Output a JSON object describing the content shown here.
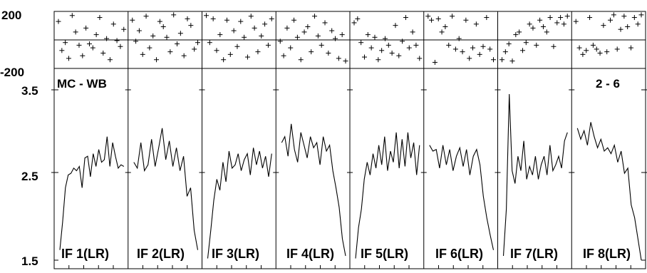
{
  "chart_data": [
    {
      "type": "scatter",
      "ylim": [
        -200,
        200
      ],
      "yticks": [
        "200",
        "-200"
      ],
      "panels": [
        {
          "x": [
            1,
            2,
            3,
            4,
            5,
            6,
            7,
            8,
            9,
            10,
            11,
            12,
            13,
            14,
            15,
            16,
            17,
            18,
            19,
            20
          ],
          "y": [
            140,
            -80,
            -20,
            -140,
            185,
            60,
            -40,
            -120,
            90,
            -30,
            -60,
            40,
            170,
            -100,
            10,
            -150,
            120,
            -5,
            -50,
            80
          ]
        },
        {
          "x": [
            1,
            2,
            3,
            4,
            5,
            6,
            7,
            8,
            9,
            10,
            11,
            12,
            13,
            14,
            15,
            16,
            17,
            18,
            19,
            20
          ],
          "y": [
            150,
            -10,
            70,
            -110,
            180,
            -60,
            30,
            -150,
            140,
            100,
            20,
            -90,
            190,
            -30,
            50,
            -120,
            160,
            110,
            -70,
            -20
          ]
        },
        {
          "x": [
            1,
            2,
            3,
            4,
            5,
            6,
            7,
            8,
            9,
            10,
            11,
            12,
            13,
            14,
            15,
            16,
            17,
            18,
            19,
            20
          ],
          "y": [
            185,
            -20,
            160,
            -80,
            40,
            -150,
            150,
            -110,
            70,
            -50,
            140,
            20,
            -130,
            180,
            90,
            -90,
            30,
            120,
            -40,
            160
          ]
        },
        {
          "x": [
            1,
            2,
            3,
            4,
            5,
            6,
            7,
            8,
            9,
            10,
            11,
            12,
            13,
            14,
            15,
            16,
            17,
            18,
            19,
            20
          ],
          "y": [
            -10,
            -120,
            90,
            -60,
            150,
            20,
            -150,
            60,
            100,
            -90,
            180,
            30,
            -40,
            130,
            -100,
            70,
            10,
            -140,
            40,
            -160
          ]
        },
        {
          "x": [
            1,
            2,
            3,
            4,
            5,
            6,
            7,
            8,
            9,
            10,
            11,
            12,
            13,
            14,
            15,
            16,
            17,
            18,
            19,
            20
          ],
          "y": [
            130,
            160,
            -20,
            -130,
            40,
            -60,
            20,
            -150,
            -80,
            10,
            -40,
            -100,
            110,
            -120,
            -10,
            170,
            -60,
            60,
            -40,
            -140
          ]
        },
        {
          "x": [
            1,
            2,
            3,
            4,
            5,
            6,
            7,
            8,
            9,
            10,
            11,
            12,
            13,
            14,
            15,
            16,
            17,
            18,
            19,
            20
          ],
          "y": [
            180,
            150,
            -170,
            160,
            60,
            100,
            -40,
            180,
            -70,
            10,
            -90,
            150,
            -140,
            -60,
            120,
            -110,
            -50,
            170,
            -70,
            -150
          ]
        },
        {
          "x": [
            1,
            2,
            3,
            4,
            5,
            6,
            7,
            8,
            9,
            10,
            11,
            12,
            13,
            14,
            15,
            16,
            17,
            18,
            19,
            20
          ],
          "y": [
            -150,
            -90,
            -30,
            -160,
            40,
            60,
            -80,
            -20,
            120,
            90,
            -40,
            150,
            100,
            60,
            170,
            -50,
            130,
            170,
            120,
            180
          ]
        },
        {
          "x": [
            1,
            2,
            3,
            4,
            5,
            6,
            7,
            8,
            9,
            10,
            11,
            12,
            13,
            14,
            15,
            16,
            17,
            18,
            19,
            20
          ],
          "y": [
            140,
            -60,
            -110,
            -80,
            170,
            -40,
            -70,
            -100,
            110,
            -90,
            150,
            190,
            -70,
            80,
            180,
            100,
            -60,
            170,
            120,
            190
          ]
        }
      ]
    },
    {
      "type": "line",
      "ylim": [
        1.5,
        3.5
      ],
      "yticks": [
        "3.5",
        "2.5",
        "1.5"
      ],
      "panels": [
        {
          "y": [
            1.62,
            1.95,
            2.35,
            2.5,
            2.52,
            2.58,
            2.55,
            2.6,
            2.35,
            2.7,
            2.72,
            2.48,
            2.75,
            2.6,
            2.8,
            2.65,
            2.68,
            2.95,
            2.6,
            2.88,
            2.72,
            2.58,
            2.62,
            2.6
          ]
        },
        {
          "y": [
            2.65,
            2.58,
            2.88,
            2.55,
            2.62,
            2.92,
            2.6,
            2.82,
            3.05,
            2.68,
            2.9,
            2.6,
            2.82,
            2.55,
            2.72,
            2.25,
            2.35,
            1.85,
            1.62
          ]
        },
        {
          "y": [
            1.52,
            1.85,
            2.2,
            2.45,
            2.32,
            2.65,
            2.42,
            2.78,
            2.58,
            2.62,
            2.75,
            2.55,
            2.68,
            2.75,
            2.5,
            2.82,
            2.62,
            2.78,
            2.58,
            2.72,
            2.48,
            2.75
          ]
        },
        {
          "y": [
            2.88,
            2.95,
            2.72,
            3.1,
            2.8,
            2.65,
            3.0,
            2.85,
            2.7,
            2.95,
            2.82,
            2.88,
            2.62,
            2.95,
            2.78,
            2.85,
            2.55,
            2.35,
            2.12,
            1.75,
            1.55
          ]
        },
        {
          "y": [
            1.52,
            1.88,
            2.1,
            2.45,
            2.65,
            2.5,
            2.75,
            2.58,
            2.85,
            2.62,
            2.95,
            2.55,
            2.78,
            2.65,
            3.0,
            2.58,
            2.92,
            2.6,
            3.0,
            2.7,
            2.88,
            2.5,
            2.85
          ]
        },
        {
          "y": [
            2.85,
            2.78,
            2.8,
            2.58,
            2.85,
            2.62,
            2.8,
            2.55,
            2.72,
            2.82,
            2.6,
            2.8,
            2.5,
            2.72,
            2.8,
            2.62,
            2.25,
            2.0,
            1.8,
            1.62
          ]
        },
        {
          "y": [
            1.55,
            2.1,
            3.45,
            2.55,
            2.4,
            2.72,
            2.55,
            2.9,
            2.45,
            2.6,
            2.5,
            2.72,
            2.45,
            2.62,
            2.72,
            2.5,
            2.85,
            2.55,
            2.62,
            2.72,
            2.58,
            2.9,
            3.0
          ]
        },
        {
          "y": [
            3.05,
            2.92,
            3.02,
            2.85,
            3.12,
            2.95,
            2.82,
            2.92,
            2.78,
            2.82,
            2.75,
            2.85,
            2.65,
            2.78,
            2.52,
            2.58,
            2.15,
            2.0,
            1.75,
            1.5
          ]
        }
      ]
    }
  ],
  "labels": {
    "panels": [
      "IF 1(LR)",
      "IF 2(LR)",
      "IF 3(LR)",
      "IF 4(LR)",
      "IF 5(LR)",
      "IF 6(LR)",
      "IF 7(LR)",
      "IF 8(LR)"
    ],
    "top_left": "MC - WB",
    "top_right": "2 - 6"
  }
}
